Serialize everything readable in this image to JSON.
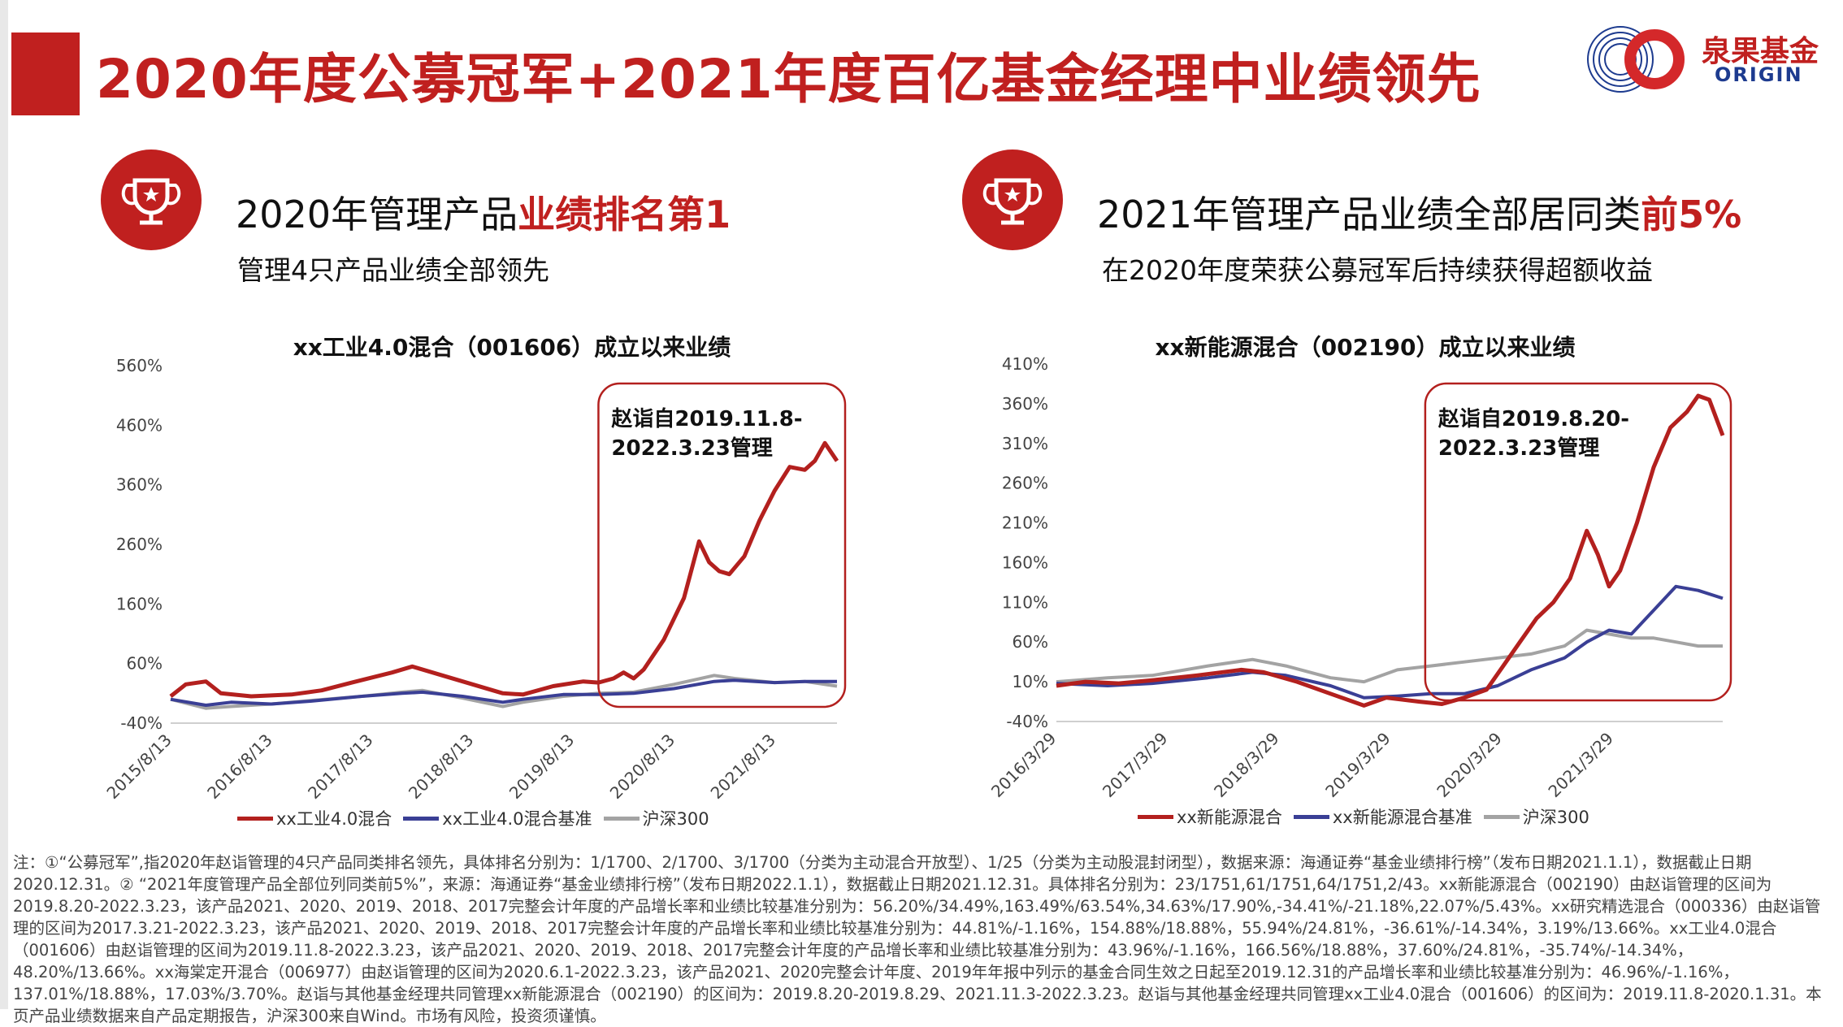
{
  "page": {
    "title": "2020年度公募冠军+2021年度百亿基金经理中业绩领先",
    "logo_cn": "泉果基金",
    "logo_en": "ORIGIN",
    "brand_color": "#c0201f"
  },
  "left_panel": {
    "head_plain": "2020年管理产品",
    "head_highlight": "业绩排名第1",
    "sub": "管理4只产品业绩全部领先",
    "icon": "trophy-icon"
  },
  "right_panel": {
    "head_plain": "2021年管理产品业绩全部居同类",
    "head_highlight": "前5%",
    "sub": "在2020年度荣获公募冠军后持续获得超额收益",
    "icon": "trophy-icon"
  },
  "chart_data": [
    {
      "type": "line",
      "title": "xx工业4.0混合（001606）成立以来业绩",
      "y_ticks": [
        "560%",
        "460%",
        "360%",
        "260%",
        "160%",
        "60%",
        "-40%"
      ],
      "ylim": [
        -40,
        560
      ],
      "x_ticks": [
        "2015/8/13",
        "2016/8/13",
        "2017/8/13",
        "2018/8/13",
        "2019/8/13",
        "2020/8/13",
        "2021/8/13"
      ],
      "x_range_years": [
        2015.6,
        2022.22
      ],
      "annotation": {
        "line1": "赵诣自2019.11.8-",
        "line2": "2022.3.23管理",
        "from": 2019.85,
        "to": 2022.22
      },
      "series": [
        {
          "name": "xx工业4.0混合",
          "color": "#b3201e",
          "x": [
            2015.6,
            2015.75,
            2015.95,
            2016.1,
            2016.4,
            2016.8,
            2017.1,
            2017.4,
            2017.8,
            2018.0,
            2018.3,
            2018.6,
            2018.9,
            2019.1,
            2019.4,
            2019.7,
            2019.85,
            2020.0,
            2020.1,
            2020.2,
            2020.3,
            2020.5,
            2020.7,
            2020.85,
            2020.95,
            2021.05,
            2021.15,
            2021.3,
            2021.45,
            2021.6,
            2021.75,
            2021.9,
            2022.0,
            2022.1,
            2022.22
          ],
          "y": [
            5,
            25,
            30,
            10,
            5,
            8,
            15,
            28,
            45,
            55,
            40,
            25,
            10,
            8,
            22,
            30,
            28,
            35,
            45,
            35,
            50,
            100,
            170,
            265,
            230,
            215,
            210,
            240,
            300,
            350,
            390,
            385,
            400,
            430,
            400
          ]
        },
        {
          "name": "xx工业4.0混合基准",
          "color": "#3a3f95",
          "x": [
            2015.6,
            2015.95,
            2016.2,
            2016.6,
            2017.0,
            2017.5,
            2017.9,
            2018.1,
            2018.5,
            2018.9,
            2019.1,
            2019.5,
            2019.85,
            2020.2,
            2020.6,
            2021.0,
            2021.2,
            2021.6,
            2021.9,
            2022.22
          ],
          "y": [
            0,
            -10,
            -5,
            -8,
            -3,
            5,
            10,
            12,
            5,
            -5,
            0,
            8,
            8,
            10,
            18,
            30,
            32,
            28,
            30,
            30
          ]
        },
        {
          "name": "沪深300",
          "color": "#a3a3a3",
          "x": [
            2015.6,
            2015.95,
            2016.2,
            2016.6,
            2017.0,
            2017.5,
            2017.9,
            2018.1,
            2018.5,
            2018.9,
            2019.1,
            2019.5,
            2019.85,
            2020.2,
            2020.6,
            2021.0,
            2021.2,
            2021.6,
            2021.9,
            2022.22
          ],
          "y": [
            0,
            -15,
            -12,
            -8,
            -2,
            5,
            12,
            15,
            2,
            -12,
            -5,
            5,
            10,
            12,
            25,
            40,
            35,
            28,
            30,
            22
          ]
        }
      ]
    },
    {
      "type": "line",
      "title": "xx新能源混合（002190）成立以来业绩",
      "y_ticks": [
        "410%",
        "360%",
        "310%",
        "260%",
        "210%",
        "160%",
        "110%",
        "60%",
        "10%",
        "-40%"
      ],
      "ylim": [
        -40,
        410
      ],
      "x_ticks": [
        "2016/3/29",
        "2017/3/29",
        "2018/3/29",
        "2019/3/29",
        "2020/3/29",
        "2021/3/29"
      ],
      "x_range_years": [
        2016.24,
        2022.22
      ],
      "annotation": {
        "line1": "赵诣自2019.8.20-",
        "line2": "2022.3.23管理",
        "from": 2019.55,
        "to": 2022.22
      },
      "series": [
        {
          "name": "xx新能源混合",
          "color": "#b3201e",
          "x": [
            2016.24,
            2016.5,
            2016.8,
            2017.1,
            2017.5,
            2017.9,
            2018.1,
            2018.4,
            2018.7,
            2019.0,
            2019.2,
            2019.5,
            2019.7,
            2019.9,
            2020.1,
            2020.25,
            2020.4,
            2020.55,
            2020.7,
            2020.85,
            2021.0,
            2021.1,
            2021.2,
            2021.3,
            2021.45,
            2021.6,
            2021.75,
            2021.9,
            2022.0,
            2022.1,
            2022.22
          ],
          "y": [
            5,
            10,
            8,
            12,
            18,
            25,
            22,
            10,
            -5,
            -20,
            -10,
            -15,
            -18,
            -10,
            0,
            30,
            60,
            90,
            110,
            140,
            200,
            170,
            130,
            150,
            210,
            280,
            330,
            350,
            370,
            365,
            320
          ]
        },
        {
          "name": "xx新能源混合基准",
          "color": "#3a3f95",
          "x": [
            2016.24,
            2016.7,
            2017.1,
            2017.6,
            2018.0,
            2018.3,
            2018.7,
            2019.0,
            2019.3,
            2019.6,
            2019.9,
            2020.2,
            2020.5,
            2020.8,
            2021.0,
            2021.2,
            2021.4,
            2021.6,
            2021.8,
            2022.0,
            2022.22
          ],
          "y": [
            8,
            5,
            8,
            15,
            22,
            18,
            5,
            -10,
            -8,
            -5,
            -5,
            5,
            25,
            40,
            60,
            75,
            70,
            100,
            130,
            125,
            115
          ]
        },
        {
          "name": "沪深300",
          "color": "#a3a3a3",
          "x": [
            2016.24,
            2016.7,
            2017.1,
            2017.6,
            2018.0,
            2018.3,
            2018.7,
            2019.0,
            2019.3,
            2019.6,
            2019.9,
            2020.2,
            2020.5,
            2020.8,
            2021.0,
            2021.2,
            2021.4,
            2021.6,
            2021.8,
            2022.0,
            2022.22
          ],
          "y": [
            10,
            15,
            18,
            30,
            38,
            30,
            15,
            10,
            25,
            30,
            35,
            40,
            45,
            55,
            75,
            70,
            65,
            65,
            60,
            55,
            55
          ]
        }
      ]
    }
  ],
  "note": "注：①“公募冠军”,指2020年赵诣管理的4只产品同类排名领先，具体排名分别为：1/1700、2/1700、3/1700（分类为主动混合开放型）、1/25（分类为主动股混封闭型），数据来源：海通证券“基金业绩排行榜”（发布日期2021.1.1），数据截止日期2020.12.31。② “2021年度管理产品全部位列同类前5%”，来源：海通证券“基金业绩排行榜”（发布日期2022.1.1），数据截止日期2021.12.31。具体排名分别为：23/1751,61/1751,64/1751,2/43。xx新能源混合（002190）由赵诣管理的区间为2019.8.20-2022.3.23，该产品2021、2020、2019、2018、2017完整会计年度的产品增长率和业绩比较基准分别为：56.20%/34.49%,163.49%/63.54%,34.63%/17.90%,-34.41%/-21.18%,22.07%/5.43%。xx研究精选混合（000336）由赵诣管理的区间为2017.3.21-2022.3.23，该产品2021、2020、2019、2018、2017完整会计年度的产品增长率和业绩比较基准分别为：44.81%/-1.16%，154.88%/18.88%，55.94%/24.81%，-36.61%/-14.34%，3.19%/13.66%。xx工业4.0混合（001606）由赵诣管理的区间为2019.11.8-2022.3.23，该产品2021、2020、2019、2018、2017完整会计年度的产品增长率和业绩比较基准分别为：43.96%/-1.16%，166.56%/18.88%，37.60%/24.81%，-35.74%/-14.34%，48.20%/13.66%。xx海棠定开混合（006977）由赵诣管理的区间为2020.6.1-2022.3.23，该产品2021、2020完整会计年度、2019年年报中列示的基金合同生效之日起至2019.12.31的产品增长率和业绩比较基准分别为：46.96%/-1.16%，137.01%/18.88%，17.03%/3.70%。赵诣与其他基金经理共同管理xx新能源混合（002190）的区间为：2019.8.20-2019.8.29、2021.11.3-2022.3.23。赵诣与其他基金经理共同管理xx工业4.0混合（001606）的区间为：2019.11.8-2020.1.31。本页产品业绩数据来自产品定期报告，沪深300来自Wind。市场有风险，投资须谨慎。"
}
